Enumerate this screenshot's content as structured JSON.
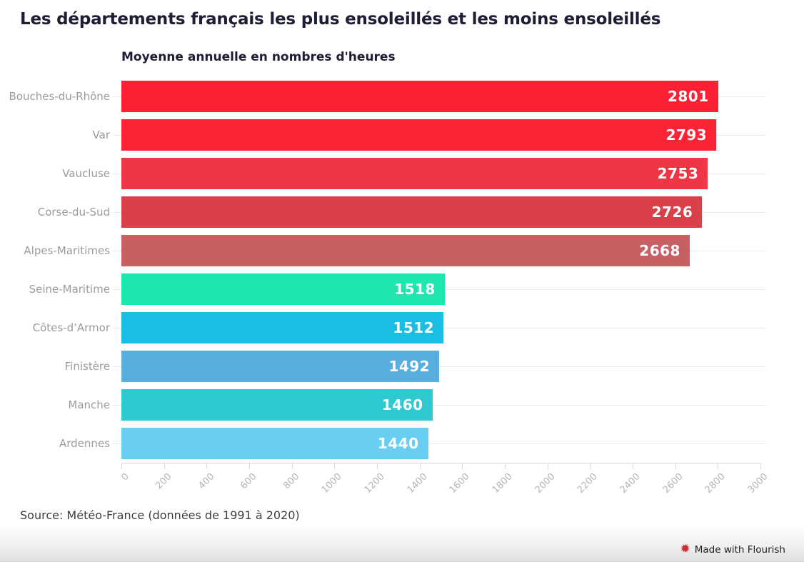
{
  "title": "Les départements français les plus ensoleillés et les moins ensoleillés",
  "subtitle": "Moyenne annuelle en nombres d'heures",
  "source": "Source: Météo-France (données de 1991 à 2020)",
  "footer": {
    "credit": "Made with Flourish",
    "icon": "flourish-starburst-icon",
    "icon_glyph": "✹",
    "icon_color": "#cf2b2f"
  },
  "chart_data": {
    "type": "bar",
    "orientation": "horizontal",
    "title": "Les départements français les plus ensoleillés et les moins ensoleillés",
    "subtitle": "Moyenne annuelle en nombres d'heures",
    "categories": [
      "Bouches-du-Rhône",
      "Var",
      "Vaucluse",
      "Corse-du-Sud",
      "Alpes-Maritimes",
      "Seine-Maritime",
      "Côtes-d’Armor",
      "Finistère",
      "Manche",
      "Ardennes"
    ],
    "values": [
      2801,
      2793,
      2753,
      2726,
      2668,
      1518,
      1512,
      1492,
      1460,
      1440
    ],
    "bar_colors": [
      "#fb2034",
      "#fb2336",
      "#ee3644",
      "#d9404a",
      "#c66063",
      "#1fe5af",
      "#1abee3",
      "#58aede",
      "#2fc9d1",
      "#69cff2"
    ],
    "value_label_color": "#ffffff",
    "category_label_color": "#9b9b9b",
    "xlim": [
      0,
      3000
    ],
    "x_tick_step": 200,
    "x_tick_labels": [
      "0",
      "200",
      "400",
      "600",
      "800",
      "1000",
      "1200",
      "1400",
      "1600",
      "1800",
      "2000",
      "2200",
      "2400",
      "2600",
      "2800",
      "3000"
    ],
    "grid": "horizontal line per category row",
    "legend": "none",
    "xlabel": "",
    "ylabel": ""
  }
}
